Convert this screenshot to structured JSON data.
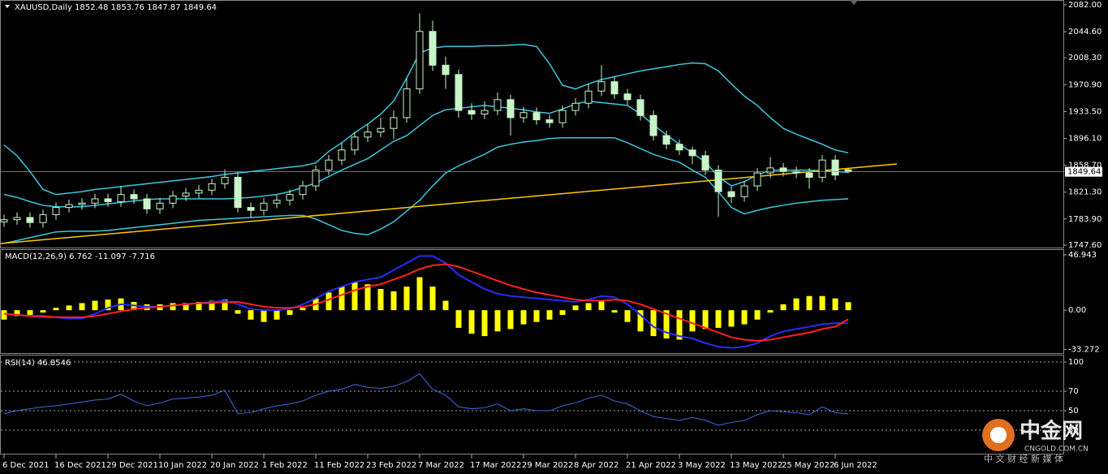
{
  "chart_data": [
    {
      "type": "candlestick",
      "title": "XAUUSD,Daily",
      "color": "#c8f5c8",
      "categories": [
        "6 Dec 2021",
        null,
        null,
        null,
        "16 Dec 2021",
        null,
        null,
        null,
        "29 Dec 2021",
        null,
        null,
        null,
        "10 Jan 2022",
        null,
        null,
        null,
        "20 Jan 2022",
        null,
        null,
        null,
        "1 Feb 2022",
        null,
        null,
        null,
        "11 Feb 2022",
        null,
        null,
        null,
        "23 Feb 2022",
        null,
        null,
        null,
        "7 Mar 2022",
        null,
        null,
        null,
        "17 Mar 2022",
        null,
        null,
        null,
        "29 Mar 2022",
        null,
        null,
        null,
        "8 Apr 2022",
        null,
        null,
        null,
        "21 Apr 2022",
        null,
        null,
        null,
        "3 May 2022",
        null,
        null,
        null,
        "13 May 2022",
        null,
        null,
        null,
        "25 May 2022",
        null,
        null,
        null,
        "6 Jun 2022",
        null
      ],
      "open": [
        1780,
        1783,
        1786,
        1779,
        1790,
        1800,
        1804,
        1806,
        1812,
        1808,
        1818,
        1812,
        1798,
        1806,
        1816,
        1820,
        1824,
        1833,
        1842,
        1800,
        1796,
        1806,
        1810,
        1818,
        1830,
        1852,
        1866,
        1880,
        1898,
        1905,
        1910,
        1925,
        1965,
        2045,
        1998,
        1985,
        1935,
        1930,
        1935,
        1950,
        1925,
        1932,
        1922,
        1918,
        1935,
        1945,
        1962,
        1975,
        1958,
        1950,
        1928,
        1900,
        1888,
        1880,
        1872,
        1852,
        1822,
        1815,
        1830,
        1848,
        1855,
        1850,
        1848,
        1842,
        1866,
        1852.48
      ],
      "high": [
        1790,
        1793,
        1793,
        1797,
        1807,
        1811,
        1813,
        1819,
        1819,
        1830,
        1825,
        1819,
        1813,
        1823,
        1827,
        1831,
        1840,
        1853,
        1849,
        1807,
        1813,
        1817,
        1825,
        1837,
        1859,
        1873,
        1890,
        1905,
        1915,
        1925,
        1935,
        1980,
        2070,
        2060,
        2010,
        1992,
        1945,
        1948,
        1960,
        1957,
        1940,
        1939,
        1929,
        1942,
        1952,
        1972,
        1998,
        1982,
        1965,
        1957,
        1935,
        1907,
        1895,
        1885,
        1879,
        1859,
        1829,
        1837,
        1855,
        1870,
        1862,
        1857,
        1855,
        1873,
        1873,
        1853.76
      ],
      "low": [
        1773,
        1776,
        1772,
        1772,
        1783,
        1793,
        1797,
        1799,
        1801,
        1801,
        1805,
        1791,
        1791,
        1799,
        1809,
        1813,
        1817,
        1826,
        1793,
        1786,
        1789,
        1799,
        1803,
        1811,
        1823,
        1845,
        1859,
        1873,
        1891,
        1898,
        1895,
        1918,
        1958,
        1990,
        1965,
        1925,
        1922,
        1923,
        1928,
        1900,
        1918,
        1915,
        1911,
        1911,
        1928,
        1938,
        1955,
        1951,
        1943,
        1921,
        1893,
        1881,
        1873,
        1860,
        1845,
        1787,
        1806,
        1808,
        1823,
        1841,
        1843,
        1841,
        1826,
        1835,
        1838,
        1847.87
      ],
      "close": [
        1783,
        1786,
        1779,
        1790,
        1800,
        1804,
        1806,
        1812,
        1808,
        1818,
        1812,
        1798,
        1806,
        1816,
        1820,
        1824,
        1833,
        1842,
        1800,
        1796,
        1806,
        1810,
        1818,
        1830,
        1852,
        1866,
        1880,
        1898,
        1905,
        1910,
        1925,
        1965,
        2045,
        1998,
        1985,
        1935,
        1930,
        1935,
        1950,
        1925,
        1932,
        1922,
        1918,
        1935,
        1945,
        1962,
        1975,
        1958,
        1950,
        1928,
        1900,
        1888,
        1880,
        1872,
        1852,
        1822,
        1815,
        1830,
        1848,
        1855,
        1850,
        1848,
        1842,
        1866,
        1845,
        1849.64
      ],
      "bands": [
        {
          "color": "#3cc8dc",
          "values": [
            1887,
            1872,
            1850,
            1825,
            1818,
            1820,
            1822,
            1825,
            1827,
            1829,
            1831,
            1833,
            1835,
            1837,
            1839,
            1841,
            1843,
            1846,
            1848,
            1850,
            1852,
            1854,
            1856,
            1858,
            1862,
            1878,
            1890,
            1904,
            1916,
            1930,
            1948,
            1980,
            2015,
            2022,
            2024,
            2024,
            2024,
            2025,
            2025,
            2026,
            2027,
            2024,
            2000,
            1970,
            1965,
            1972,
            1978,
            1982,
            1986,
            1990,
            1993,
            1996,
            1999,
            2001,
            2000,
            1990,
            1972,
            1955,
            1942,
            1925,
            1910,
            1902,
            1895,
            1888,
            1880,
            1876
          ]
        },
        {
          "color": "#3cc8dc",
          "values": [
            1818,
            1814,
            1808,
            1803,
            1801,
            1801,
            1801,
            1803,
            1805,
            1807,
            1809,
            1811,
            1812,
            1812,
            1812,
            1812,
            1812,
            1812,
            1813,
            1814,
            1816,
            1818,
            1822,
            1828,
            1834,
            1843,
            1852,
            1860,
            1868,
            1880,
            1892,
            1900,
            1914,
            1928,
            1936,
            1938,
            1940,
            1942,
            1940,
            1938,
            1936,
            1933,
            1931,
            1937,
            1944,
            1948,
            1946,
            1944,
            1942,
            1930,
            1915,
            1901,
            1888,
            1876,
            1863,
            1843,
            1830,
            1836,
            1845,
            1852,
            1852,
            1852,
            1852,
            1851,
            1850,
            1849
          ]
        },
        {
          "color": "#3cc8dc",
          "values": [
            1750,
            1754,
            1758,
            1762,
            1766,
            1767,
            1767,
            1767,
            1768,
            1770,
            1772,
            1774,
            1776,
            1778,
            1780,
            1782,
            1783,
            1784,
            1785,
            1786,
            1787,
            1788,
            1789,
            1789,
            1784,
            1776,
            1768,
            1764,
            1762,
            1770,
            1780,
            1795,
            1810,
            1830,
            1848,
            1858,
            1866,
            1874,
            1884,
            1888,
            1891,
            1893,
            1896,
            1897,
            1897,
            1897,
            1897,
            1897,
            1890,
            1882,
            1874,
            1868,
            1863,
            1852,
            1842,
            1822,
            1800,
            1791,
            1796,
            1800,
            1803,
            1806,
            1808,
            1810,
            1811,
            1812
          ]
        }
      ],
      "trendline": {
        "color": "#ffc800",
        "values": [
          1749.8,
          1860.5
        ]
      },
      "ylim": [
        1744.2,
        2087.6
      ],
      "yticks": [
        {
          "value": 2082,
          "label": "2082.00"
        },
        {
          "value": 2044.6,
          "label": "2044.60"
        },
        {
          "value": 2008.3,
          "label": "2008.30"
        },
        {
          "value": 1970.9,
          "label": "1970.90"
        },
        {
          "value": 1933.5,
          "label": "1933.50"
        },
        {
          "value": 1896.1,
          "label": "1896.10"
        },
        {
          "value": 1858.7,
          "label": "1858.70"
        },
        {
          "value": 1821.3,
          "label": "1821.30"
        },
        {
          "value": 1783.9,
          "label": "1783.90"
        },
        {
          "value": 1747.6,
          "label": "1747.60"
        }
      ]
    },
    {
      "type": "macd",
      "title": "MACD(12,26,9)",
      "color": "#ffff00",
      "values": [
        -8,
        -5,
        -4,
        -2,
        2,
        4,
        6,
        8,
        9,
        10,
        7,
        5,
        5,
        6,
        6,
        7,
        8,
        9,
        -3,
        -8,
        -10,
        -8,
        -4,
        2,
        10,
        15,
        20,
        24,
        22,
        18,
        16,
        20,
        28,
        20,
        8,
        -15,
        -20,
        -22,
        -18,
        -16,
        -12,
        -10,
        -8,
        -4,
        4,
        6,
        8,
        -2,
        -10,
        -18,
        -22,
        -24,
        -25,
        -18,
        -16,
        -15,
        -14,
        -12,
        -8,
        -2,
        5,
        10,
        12,
        12,
        10,
        6.762
      ],
      "series": [
        {
          "color": "#2a2aff",
          "values": [
            -3,
            -4,
            -5,
            -6,
            -6,
            -7,
            -7,
            -3,
            2,
            5,
            4,
            3,
            3,
            4,
            5,
            6,
            7,
            8,
            5,
            1,
            0,
            0,
            1,
            5,
            10,
            16,
            20,
            24,
            26,
            28,
            34,
            40,
            46,
            46,
            40,
            30,
            24,
            18,
            14,
            12,
            11,
            10,
            9,
            8,
            7,
            9,
            12,
            11,
            5,
            -4,
            -14,
            -19,
            -22,
            -24,
            -28,
            -31,
            -32,
            -31,
            -28,
            -22,
            -18,
            -16,
            -14,
            -12,
            -11,
            -11.097
          ]
        },
        {
          "color": "#ff2020",
          "values": [
            -3,
            -4,
            -5,
            -5,
            -6,
            -6,
            -6,
            -5,
            -3,
            -1,
            1,
            2,
            3,
            4,
            5,
            6,
            6,
            7,
            7,
            5,
            3,
            2,
            2,
            3,
            5,
            9,
            13,
            17,
            20,
            22,
            26,
            30,
            35,
            38,
            39,
            37,
            33,
            29,
            25,
            21,
            18,
            15,
            13,
            11,
            9,
            8,
            8,
            9,
            8,
            5,
            1,
            -3,
            -7,
            -11,
            -15,
            -19,
            -23,
            -25,
            -26,
            -25,
            -23,
            -21,
            -19,
            -16,
            -14,
            -7.716
          ]
        }
      ],
      "ylim": [
        -36.4,
        51.1
      ],
      "yticks": [
        46.943,
        {
          "value": 0,
          "label": "0.00"
        },
        -33.272
      ]
    },
    {
      "type": "line",
      "title": "RSI(14)",
      "grid": true,
      "series": [
        {
          "color": "#3b6fe0",
          "values": [
            47,
            50,
            52,
            54,
            55,
            57,
            59,
            61,
            62,
            67,
            60,
            55,
            58,
            62,
            63,
            64,
            66,
            71,
            47,
            48,
            52,
            55,
            57,
            60,
            66,
            70,
            72,
            77,
            74,
            73,
            75,
            80,
            88,
            72,
            66,
            54,
            52,
            53,
            57,
            50,
            52,
            50,
            50,
            55,
            58,
            63,
            66,
            60,
            57,
            50,
            44,
            42,
            40,
            43,
            40,
            35,
            38,
            40,
            46,
            50,
            49,
            48,
            46,
            54,
            48,
            46.8546
          ]
        }
      ],
      "ylim": [
        6.7,
        106.7
      ],
      "yticks": [
        100,
        70,
        50,
        30
      ]
    }
  ],
  "watermark": {
    "logo": "中金网",
    "site": "CNGOLD.COM.CN",
    "slogan": "中 文 财 经 新 媒 体"
  }
}
